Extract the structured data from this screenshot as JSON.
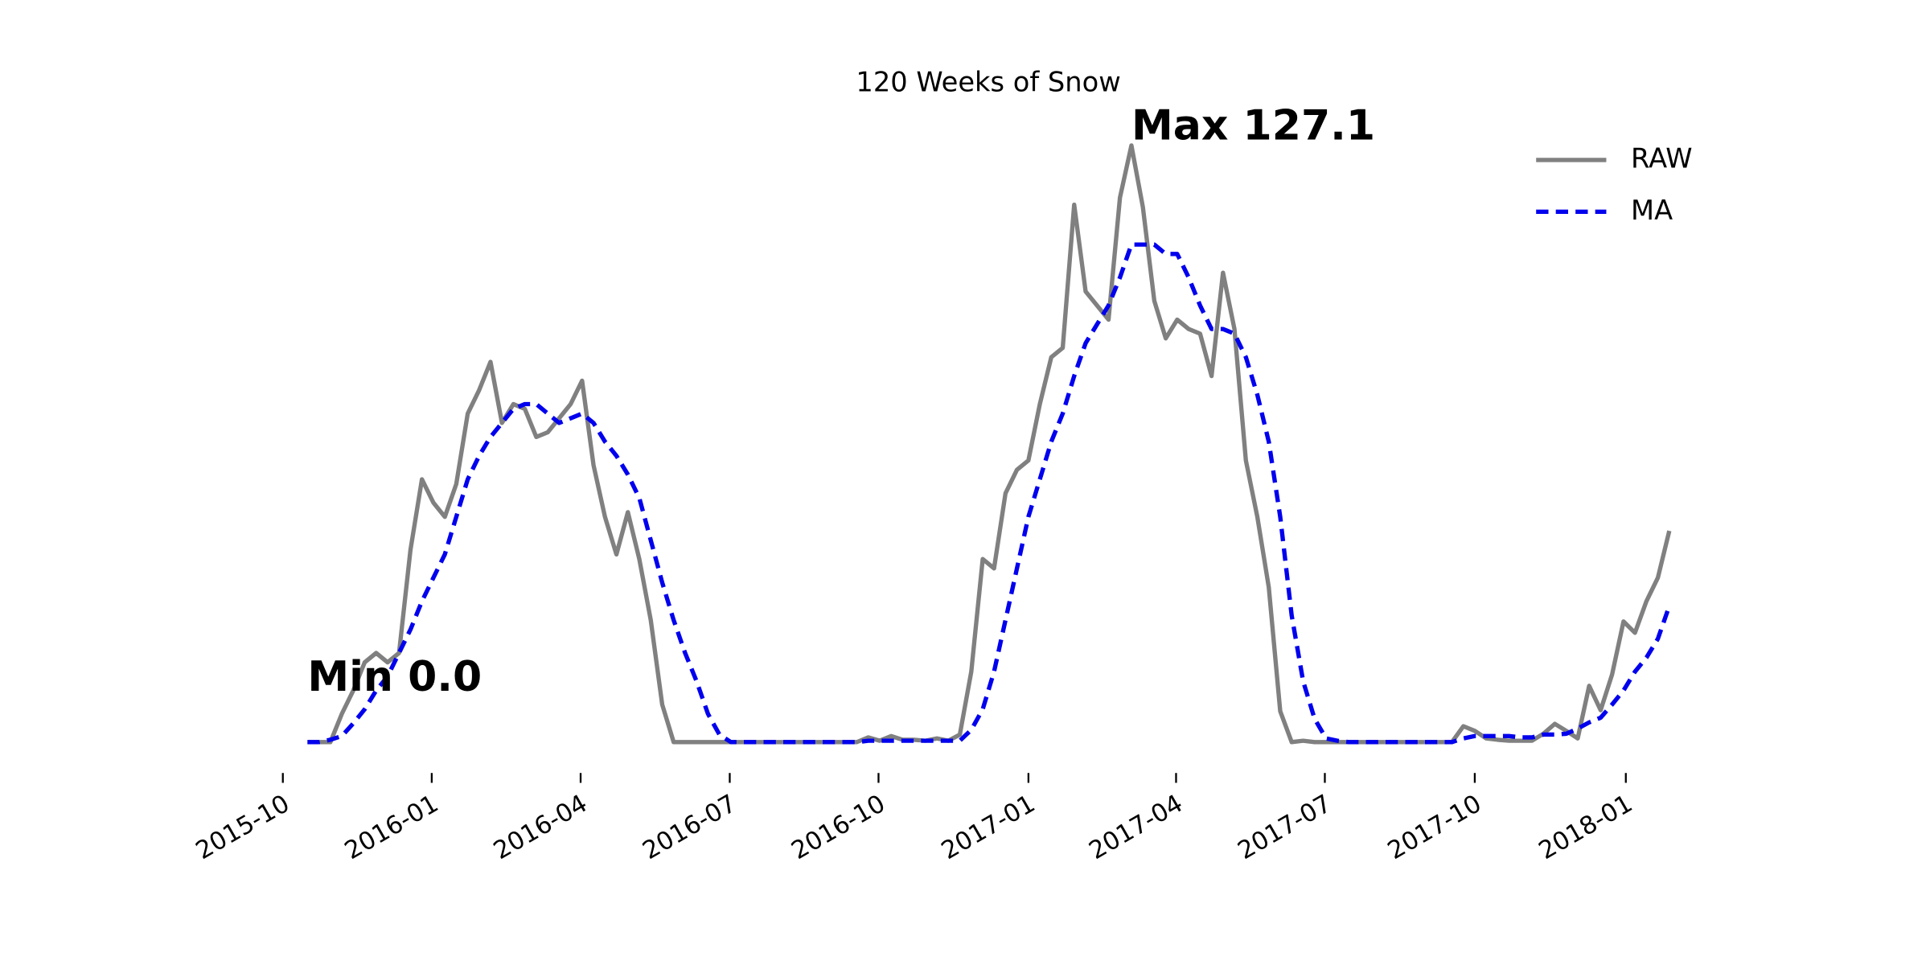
{
  "chart_data": {
    "type": "line",
    "title": "120 Weeks of Snow",
    "x": [
      0,
      1,
      2,
      3,
      4,
      5,
      6,
      7,
      8,
      9,
      10,
      11,
      12,
      13,
      14,
      15,
      16,
      17,
      18,
      19,
      20,
      21,
      22,
      23,
      24,
      25,
      26,
      27,
      28,
      29,
      30,
      31,
      32,
      33,
      34,
      35,
      36,
      37,
      38,
      39,
      40,
      41,
      42,
      43,
      44,
      45,
      46,
      47,
      48,
      49,
      50,
      51,
      52,
      53,
      54,
      55,
      56,
      57,
      58,
      59,
      60,
      61,
      62,
      63,
      64,
      65,
      66,
      67,
      68,
      69,
      70,
      71,
      72,
      73,
      74,
      75,
      76,
      77,
      78,
      79,
      80,
      81,
      82,
      83,
      84,
      85,
      86,
      87,
      88,
      89,
      90,
      91,
      92,
      93,
      94,
      95,
      96,
      97,
      98,
      99,
      100,
      101,
      102,
      103,
      104,
      105,
      106,
      107,
      108,
      109,
      110,
      111,
      112,
      113,
      114,
      115,
      116,
      117,
      118,
      119
    ],
    "series": [
      {
        "name": "RAW",
        "color": "#808080",
        "dashed": false,
        "values": [
          0,
          0,
          0,
          6,
          11,
          17,
          19,
          17,
          19,
          41,
          56,
          51,
          48,
          55,
          70,
          75,
          81,
          68,
          72,
          71,
          65,
          66,
          69,
          72,
          77,
          59,
          48,
          40,
          49,
          39,
          26,
          8,
          0,
          0,
          0,
          0,
          0,
          0,
          0,
          0,
          0,
          0,
          0,
          0,
          0,
          0,
          0,
          0,
          0,
          1,
          0.3,
          1.3,
          0.5,
          0.5,
          0.3,
          0.8,
          0.3,
          1.6,
          15,
          39,
          37,
          53,
          58,
          60,
          72,
          82,
          84,
          114.5,
          96,
          93,
          90,
          116,
          127.1,
          114,
          94,
          86,
          90,
          88,
          87,
          78,
          100,
          88,
          60,
          48,
          33,
          6.6,
          0,
          0.3,
          0,
          0,
          0,
          0,
          0,
          0,
          0,
          0,
          0,
          0,
          0,
          0,
          0,
          3.4,
          2.4,
          0.8,
          0.5,
          0.3,
          0.3,
          0.3,
          1.8,
          3.9,
          2.4,
          0.8,
          12,
          6.8,
          14.4,
          25.7,
          23.3,
          30,
          35,
          45
        ]
      },
      {
        "name": "MA",
        "color": "#0000ee",
        "dashed": true,
        "values": [
          0,
          0,
          0.5,
          1.3,
          4,
          7,
          11,
          14,
          19,
          24,
          30,
          35,
          40,
          48,
          56,
          61,
          65,
          68,
          71,
          72,
          72,
          70,
          68,
          69,
          70,
          68,
          64,
          61,
          57,
          52,
          43,
          34,
          26,
          19,
          13,
          6,
          1.6,
          0,
          0,
          0,
          0,
          0,
          0,
          0,
          0,
          0,
          0,
          0,
          0,
          0.3,
          0.3,
          0.3,
          0.3,
          0.3,
          0.3,
          0.3,
          0.3,
          0.3,
          2.6,
          7,
          15,
          26,
          37,
          48,
          56,
          64,
          70,
          78,
          85,
          89,
          93,
          99,
          106,
          106,
          106,
          104,
          104,
          99,
          93,
          88,
          88,
          87,
          82,
          74,
          64,
          48,
          27,
          13,
          5,
          0.8,
          0.3,
          0,
          0,
          0,
          0,
          0,
          0,
          0,
          0,
          0,
          0,
          0.8,
          1.3,
          1.3,
          1.3,
          1.3,
          1,
          1,
          1.6,
          1.6,
          1.8,
          2.9,
          4.2,
          5.2,
          8,
          11,
          15,
          18,
          22,
          29
        ]
      }
    ],
    "annotations": [
      "Max 127.1",
      "Min 0.0"
    ],
    "xlim": [
      -6,
      125
    ],
    "ylim": [
      -5,
      140
    ],
    "xticks": [
      {
        "value": -2.15,
        "label": "2015-10"
      },
      {
        "value": 10.86,
        "label": "2016-01"
      },
      {
        "value": 23.87,
        "label": "2016-04"
      },
      {
        "value": 36.9,
        "label": "2016-07"
      },
      {
        "value": 49.9,
        "label": "2016-10"
      },
      {
        "value": 63.0,
        "label": "2017-01"
      },
      {
        "value": 75.9,
        "label": "2017-04"
      },
      {
        "value": 88.9,
        "label": "2017-07"
      },
      {
        "value": 102.0,
        "label": "2017-10"
      },
      {
        "value": 115.2,
        "label": "2018-01"
      }
    ],
    "legend": "upper right"
  }
}
